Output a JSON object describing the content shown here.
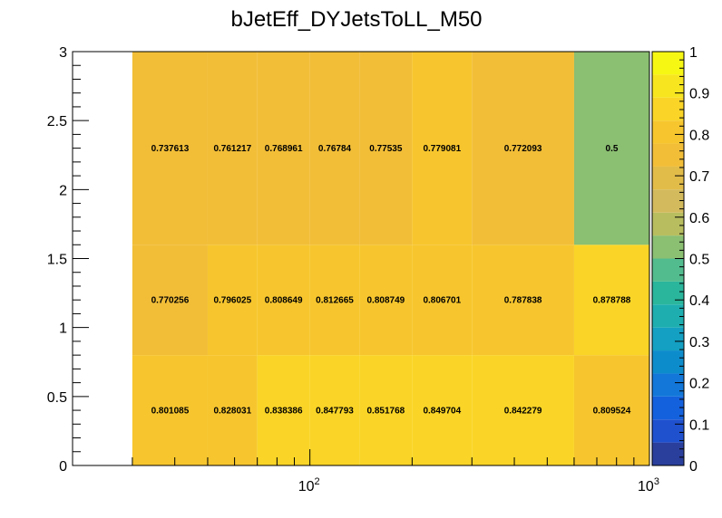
{
  "chart_data": {
    "type": "heatmap",
    "title": "bJetEff_DYJetsToLL_M50",
    "xlabel": "",
    "ylabel": "",
    "x_scale": "log",
    "x_range": [
      20,
      1000
    ],
    "x_tick_labels": [
      {
        "value": 100,
        "base": "10",
        "exp": "2"
      },
      {
        "value": 1000,
        "base": "10",
        "exp": "3"
      }
    ],
    "y_range": [
      0,
      3
    ],
    "y_tick_labels": [
      "0",
      "0.5",
      "1",
      "1.5",
      "2",
      "2.5",
      "3"
    ],
    "z_range": [
      0,
      1
    ],
    "z_tick_labels": [
      "0",
      "0.1",
      "0.2",
      "0.3",
      "0.4",
      "0.5",
      "0.6",
      "0.7",
      "0.8",
      "0.9",
      "1"
    ],
    "x_bin_edges": [
      30,
      50,
      70,
      100,
      140,
      200,
      300,
      600,
      1000
    ],
    "y_bin_edges": [
      0,
      0.8,
      1.6,
      3
    ],
    "values": [
      [
        0.801085,
        0.828031,
        0.838386,
        0.847793,
        0.851768,
        0.849704,
        0.842279,
        0.809524
      ],
      [
        0.770256,
        0.796025,
        0.808649,
        0.812665,
        0.808749,
        0.806701,
        0.787838,
        0.878788
      ],
      [
        0.737613,
        0.761217,
        0.768961,
        0.76784,
        0.77535,
        0.779081,
        0.772093,
        0.5
      ]
    ],
    "labels": [
      [
        "0.801085",
        "0.828031",
        "0.838386",
        "0.847793",
        "0.851768",
        "0.849704",
        "0.842279",
        "0.809524"
      ],
      [
        "0.770256",
        "0.796025",
        "0.808649",
        "0.812665",
        "0.808749",
        "0.806701",
        "0.787838",
        "0.878788"
      ],
      [
        "0.737613",
        "0.761217",
        "0.768961",
        "0.76784",
        "0.77535",
        "0.779081",
        "0.772093",
        "0.5"
      ]
    ],
    "palette": [
      "#2a3e9c",
      "#1f51cf",
      "#1461de",
      "#1277d9",
      "#0d8ccc",
      "#13a0c2",
      "#1eaeb0",
      "#2ab69c",
      "#53bc8f",
      "#8bbf72",
      "#b8be5f",
      "#d3ba5c",
      "#e2bc49",
      "#f2be38",
      "#f7c62e",
      "#fad527",
      "#f7e51f",
      "#f7f714"
    ],
    "grid": false,
    "legend": "palette at right"
  }
}
